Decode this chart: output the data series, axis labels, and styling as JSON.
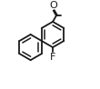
{
  "background_color": "#ffffff",
  "line_color": "#1a1a1a",
  "line_width": 1.3,
  "font_size_F": 8.0,
  "font_size_O": 8.0,
  "figsize": [
    1.1,
    0.98
  ],
  "dpi": 100,
  "label_F": "F",
  "label_O": "O"
}
